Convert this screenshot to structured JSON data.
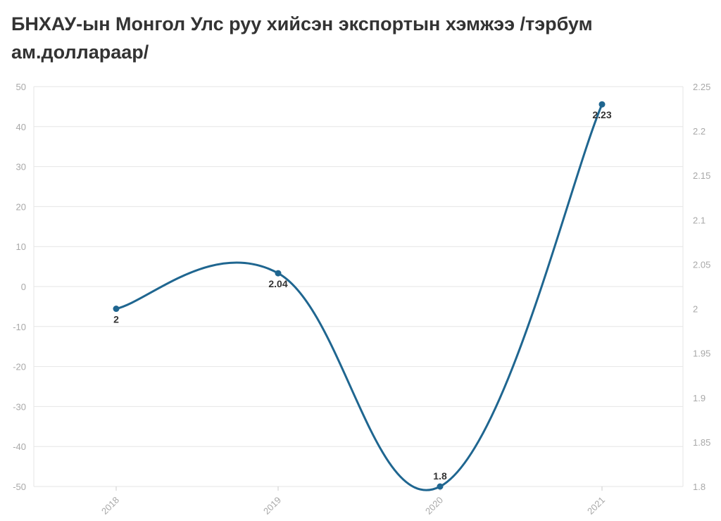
{
  "chart_data": {
    "type": "line",
    "title": "БНХАУ-ын Монгол Улс руу хийсэн экспортын хэмжээ /тэрбум ам.доллараар/",
    "categories": [
      "2018",
      "2019",
      "2020",
      "2021"
    ],
    "series": [
      {
        "values": [
          2,
          2.04,
          1.8,
          2.23
        ],
        "axis": "right",
        "data_labels": [
          "2",
          "2.04",
          "1.8",
          "2.23"
        ]
      }
    ],
    "y_left": {
      "ticks": [
        "50",
        "40",
        "30",
        "20",
        "10",
        "0",
        "-10",
        "-20",
        "-30",
        "-40",
        "-50"
      ],
      "range": [
        -50,
        50
      ]
    },
    "y_right": {
      "ticks": [
        "2.25",
        "2.2",
        "2.15",
        "2.1",
        "2.05",
        "2",
        "1.95",
        "1.9",
        "1.85",
        "1.8"
      ],
      "range": [
        1.8,
        2.25
      ]
    },
    "grid": true,
    "legend": "none",
    "line_color": "#1f6690",
    "grid_color": "#e6e6e6",
    "tick_color": "#a8a8a8"
  }
}
